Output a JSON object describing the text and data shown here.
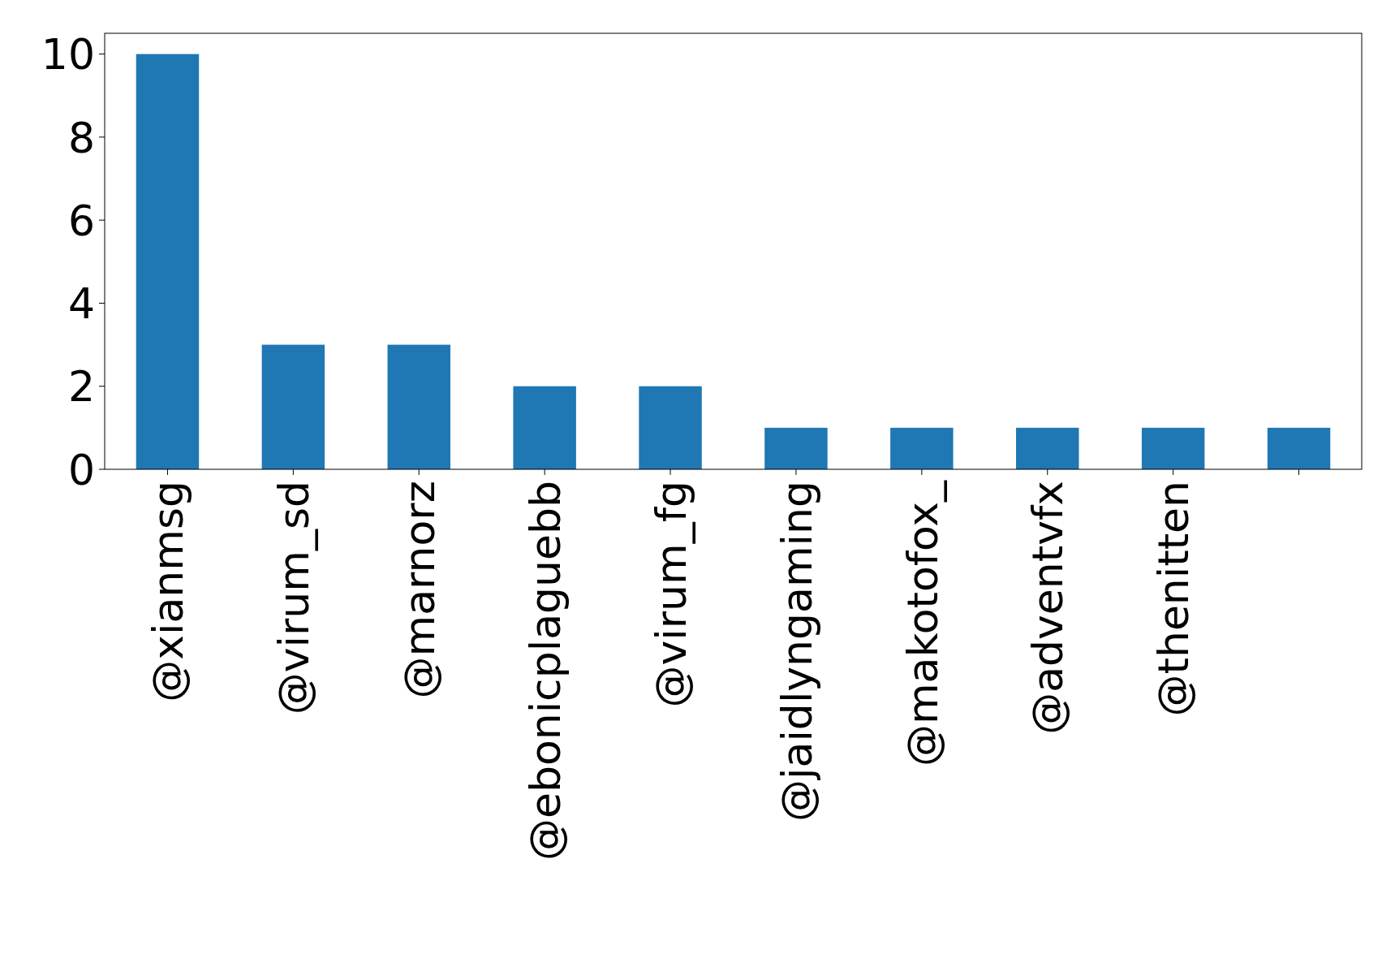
{
  "chart_data": {
    "type": "bar",
    "categories": [
      "@xianmsg",
      "@virum_sd",
      "@marnorz",
      "@ebonicplaguebb",
      "@virum_fg",
      "@jaidlyngaming",
      "@makotofox_",
      "@adventvfx",
      "@thenitten",
      null
    ],
    "values": [
      10,
      3,
      3,
      2,
      2,
      1,
      1,
      1,
      1,
      1
    ],
    "color": "#1f77b4",
    "ylim": [
      0,
      10.5
    ],
    "yticks": [
      0,
      2,
      4,
      6,
      8,
      10
    ],
    "grid": false
  }
}
